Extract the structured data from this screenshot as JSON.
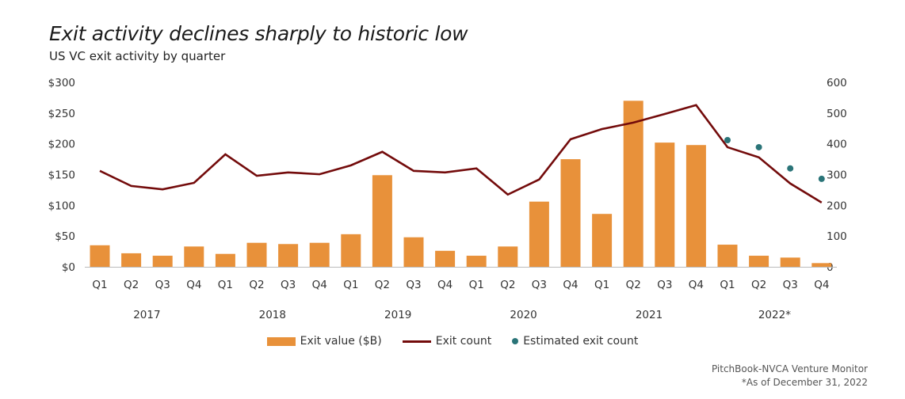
{
  "colors": {
    "bar": "#e8913a",
    "line": "#730b0b",
    "estimate": "#2a7478",
    "axis": "#bbbbbb"
  },
  "chart_data": {
    "type": "bar+line",
    "title": "Exit activity declines sharply to historic low",
    "subtitle": "US VC exit activity by quarter",
    "quarters": [
      "Q1",
      "Q2",
      "Q3",
      "Q4",
      "Q1",
      "Q2",
      "Q3",
      "Q4",
      "Q1",
      "Q2",
      "Q3",
      "Q4",
      "Q1",
      "Q2",
      "Q3",
      "Q4",
      "Q1",
      "Q2",
      "Q3",
      "Q4",
      "Q1",
      "Q2",
      "Q3",
      "Q4"
    ],
    "years": [
      "2017",
      "2018",
      "2019",
      "2020",
      "2021",
      "2022*"
    ],
    "left_axis": {
      "ticks": [
        "$0",
        "$50",
        "$100",
        "$150",
        "$200",
        "$250",
        "$300"
      ],
      "ylim": [
        0,
        300
      ]
    },
    "right_axis": {
      "ticks": [
        "0",
        "100",
        "200",
        "300",
        "400",
        "500",
        "600"
      ],
      "ylim": [
        0,
        600
      ]
    },
    "series": [
      {
        "name": "Exit value ($B)",
        "type": "bar",
        "axis": "left",
        "values": [
          35,
          22,
          18,
          33,
          21,
          39,
          37,
          39,
          53,
          149,
          48,
          26,
          18,
          33,
          106,
          175,
          86,
          270,
          202,
          198,
          36,
          18,
          15,
          6
        ]
      },
      {
        "name": "Exit count",
        "type": "line",
        "axis": "right",
        "values": [
          312,
          263,
          252,
          273,
          366,
          296,
          307,
          301,
          330,
          374,
          312,
          307,
          320,
          235,
          284,
          415,
          448,
          469,
          497,
          526,
          389,
          356,
          271,
          209
        ]
      },
      {
        "name": "Estimated exit count",
        "type": "scatter",
        "axis": "right",
        "values": [
          null,
          null,
          null,
          null,
          null,
          null,
          null,
          null,
          null,
          null,
          null,
          null,
          null,
          null,
          null,
          null,
          null,
          null,
          null,
          null,
          412,
          389,
          320,
          286
        ]
      }
    ],
    "legend_position": "bottom-center"
  },
  "source": {
    "line1": "PitchBook-NVCA Venture Monitor",
    "line2": "*As of December 31, 2022"
  }
}
